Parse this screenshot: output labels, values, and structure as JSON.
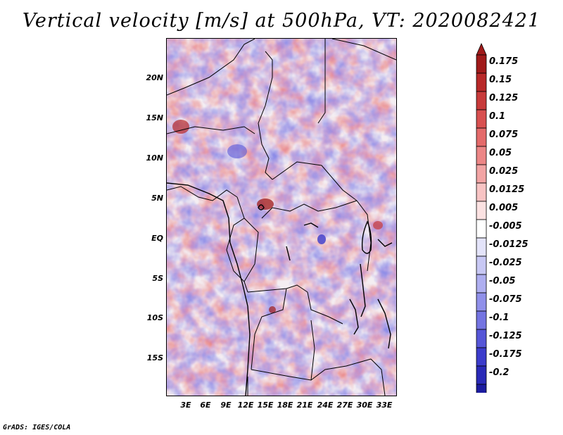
{
  "title": "Vertical velocity [m/s] at 500hPa, VT: 2020082421",
  "footer": "GrADS: IGES/COLA",
  "map": {
    "region": "Central Africa",
    "variable": "Vertical velocity",
    "units": "m/s",
    "level": "500hPa",
    "valid_time": "2020082421",
    "lat_labels": [
      "20N",
      "15N",
      "10N",
      "5N",
      "EQ",
      "5S",
      "10S",
      "15S"
    ],
    "lon_labels": [
      "3E",
      "6E",
      "9E",
      "12E",
      "15E",
      "18E",
      "21E",
      "24E",
      "27E",
      "30E",
      "33E"
    ]
  },
  "colorbar": {
    "labels": [
      "0.175",
      "0.15",
      "0.125",
      "0.1",
      "0.075",
      "0.05",
      "0.025",
      "0.0125",
      "0.005",
      "-0.005",
      "-0.0125",
      "-0.025",
      "-0.05",
      "-0.075",
      "-0.1",
      "-0.125",
      "-0.175",
      "-0.2"
    ],
    "colors": [
      "#a01a1a",
      "#b82828",
      "#c83a3a",
      "#d85050",
      "#e46a6a",
      "#ec8686",
      "#f2a4a4",
      "#f8c4c4",
      "#fce2e2",
      "#ffffff",
      "#e4e4fa",
      "#c8c8f4",
      "#aeaef0",
      "#9090ea",
      "#7474e2",
      "#5656d8",
      "#3c3ccc",
      "#2a2ab8",
      "#1c1ca0"
    ],
    "max_color": "#a01a1a",
    "min_color": "#1c1ca0"
  }
}
